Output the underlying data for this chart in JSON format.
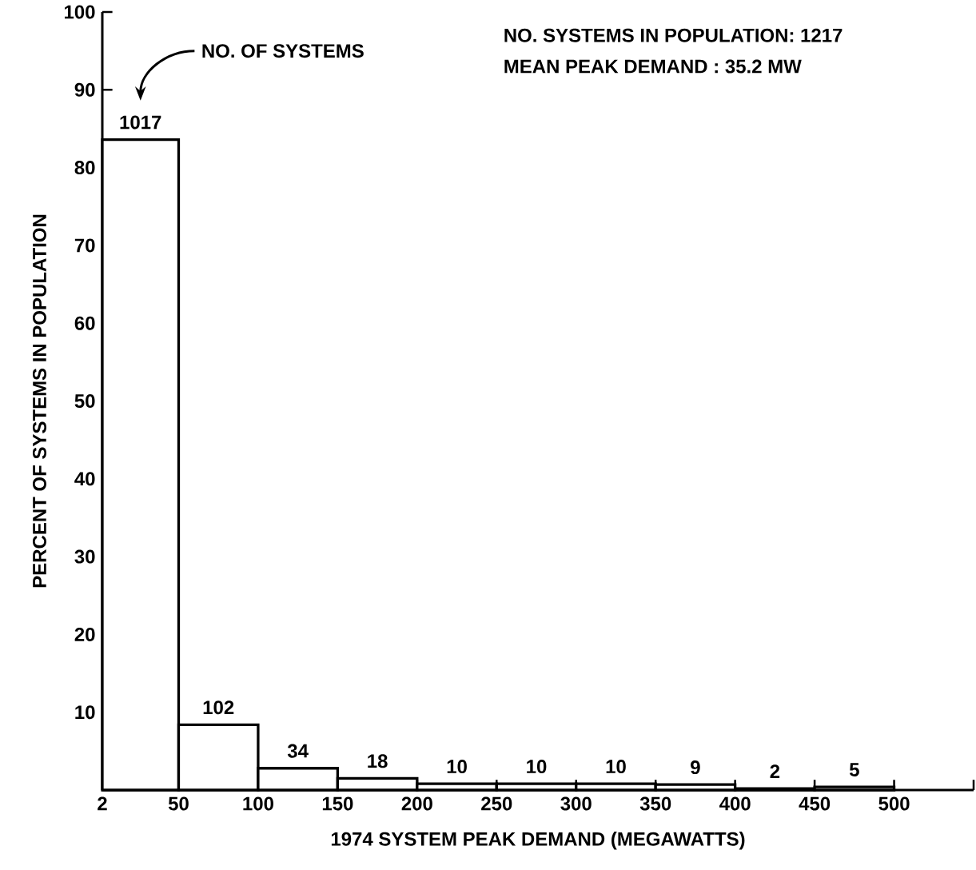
{
  "chart_data": {
    "type": "histogram",
    "xlabel": "1974 SYSTEM PEAK DEMAND (MEGAWATTS)",
    "ylabel": "PERCENT OF SYSTEMS IN POPULATION",
    "bins": [
      2,
      50,
      100,
      150,
      200,
      250,
      300,
      350,
      400,
      450,
      500
    ],
    "values": [
      83.6,
      8.4,
      2.8,
      1.5,
      0.8,
      0.8,
      0.8,
      0.7,
      0.2,
      0.4
    ],
    "color": "#000000",
    "xlim": [
      2,
      550
    ],
    "ylim": [
      0,
      100
    ],
    "xticks": [
      2,
      50,
      100,
      150,
      200,
      250,
      300,
      350,
      400,
      450,
      500,
      {
        "value": 550,
        "label": null
      }
    ],
    "yticks": [
      10,
      20,
      30,
      40,
      50,
      60,
      70,
      80,
      90,
      100
    ],
    "grid": false,
    "annotations": [
      "NO. OF SYSTEMS",
      "NO. SYSTEMS IN POPULATION: 1217",
      "MEAN PEAK DEMAND    :  35.2 MW",
      {
        "text": "1017",
        "x": 26,
        "y": 83.6
      },
      {
        "text": "102",
        "x": 75,
        "y": 8.4
      },
      {
        "text": "34",
        "x": 125,
        "y": 2.8
      },
      {
        "text": "18",
        "x": 175,
        "y": 1.5
      },
      {
        "text": "10",
        "x": 225,
        "y": 0.8
      },
      {
        "text": "10",
        "x": 275,
        "y": 0.8
      },
      {
        "text": "10",
        "x": 325,
        "y": 0.8
      },
      {
        "text": "9",
        "x": 375,
        "y": 0.7
      },
      {
        "text": "2",
        "x": 425,
        "y": 0.2
      },
      {
        "text": "5",
        "x": 475,
        "y": 0.4
      }
    ]
  }
}
